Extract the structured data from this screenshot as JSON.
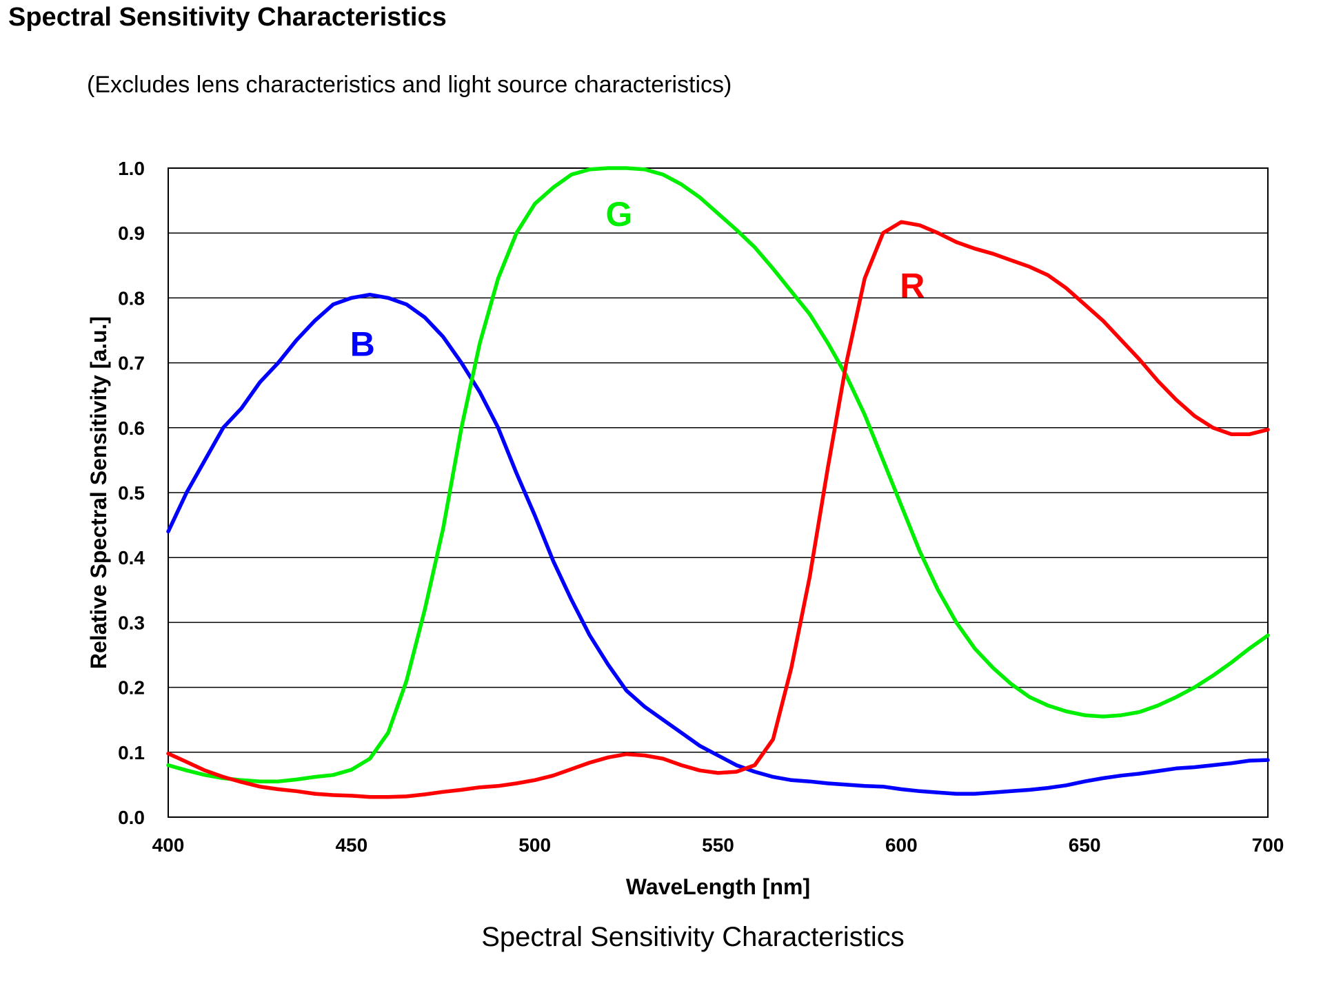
{
  "page": {
    "heading": "Spectral Sensitivity Characteristics",
    "subtitle": "(Excludes lens characteristics and light source characteristics)",
    "caption": "Spectral Sensitivity Characteristics"
  },
  "chart_data": {
    "type": "line",
    "xlabel": "WaveLength [nm]",
    "ylabel": "Relative Spectral Sensitivity [a.u.]",
    "xlim": [
      400,
      700
    ],
    "ylim": [
      0,
      1
    ],
    "xticks": [
      "400",
      "450",
      "500",
      "550",
      "600",
      "650",
      "700"
    ],
    "yticks": [
      "0.0",
      "0.1",
      "0.2",
      "0.3",
      "0.4",
      "0.5",
      "0.6",
      "0.7",
      "0.8",
      "0.9",
      "1.0"
    ],
    "grid": "horizontal",
    "series": [
      {
        "name": "B",
        "color": "#0000ff",
        "label_position": [
          453,
          0.73
        ],
        "points": [
          [
            400,
            0.44
          ],
          [
            405,
            0.5
          ],
          [
            410,
            0.55
          ],
          [
            415,
            0.6
          ],
          [
            420,
            0.63
          ],
          [
            425,
            0.67
          ],
          [
            430,
            0.7
          ],
          [
            435,
            0.735
          ],
          [
            440,
            0.765
          ],
          [
            445,
            0.79
          ],
          [
            450,
            0.8
          ],
          [
            455,
            0.805
          ],
          [
            460,
            0.8
          ],
          [
            465,
            0.79
          ],
          [
            470,
            0.77
          ],
          [
            475,
            0.74
          ],
          [
            480,
            0.7
          ],
          [
            485,
            0.655
          ],
          [
            490,
            0.6
          ],
          [
            495,
            0.53
          ],
          [
            500,
            0.465
          ],
          [
            505,
            0.395
          ],
          [
            510,
            0.335
          ],
          [
            515,
            0.28
          ],
          [
            520,
            0.235
          ],
          [
            525,
            0.195
          ],
          [
            530,
            0.17
          ],
          [
            535,
            0.15
          ],
          [
            540,
            0.13
          ],
          [
            545,
            0.11
          ],
          [
            550,
            0.095
          ],
          [
            555,
            0.08
          ],
          [
            560,
            0.07
          ],
          [
            565,
            0.062
          ],
          [
            570,
            0.057
          ],
          [
            575,
            0.055
          ],
          [
            580,
            0.052
          ],
          [
            585,
            0.05
          ],
          [
            590,
            0.048
          ],
          [
            595,
            0.047
          ],
          [
            600,
            0.043
          ],
          [
            605,
            0.04
          ],
          [
            610,
            0.038
          ],
          [
            615,
            0.036
          ],
          [
            620,
            0.036
          ],
          [
            625,
            0.038
          ],
          [
            630,
            0.04
          ],
          [
            635,
            0.042
          ],
          [
            640,
            0.045
          ],
          [
            645,
            0.049
          ],
          [
            650,
            0.055
          ],
          [
            655,
            0.06
          ],
          [
            660,
            0.064
          ],
          [
            665,
            0.067
          ],
          [
            670,
            0.071
          ],
          [
            675,
            0.075
          ],
          [
            680,
            0.077
          ],
          [
            685,
            0.08
          ],
          [
            690,
            0.083
          ],
          [
            695,
            0.087
          ],
          [
            700,
            0.088
          ]
        ]
      },
      {
        "name": "G",
        "color": "#00ee00",
        "label_position": [
          523,
          0.93
        ],
        "points": [
          [
            400,
            0.08
          ],
          [
            405,
            0.072
          ],
          [
            410,
            0.065
          ],
          [
            415,
            0.06
          ],
          [
            420,
            0.057
          ],
          [
            425,
            0.055
          ],
          [
            430,
            0.055
          ],
          [
            435,
            0.058
          ],
          [
            440,
            0.062
          ],
          [
            445,
            0.065
          ],
          [
            450,
            0.073
          ],
          [
            455,
            0.09
          ],
          [
            460,
            0.13
          ],
          [
            465,
            0.21
          ],
          [
            470,
            0.32
          ],
          [
            475,
            0.445
          ],
          [
            480,
            0.6
          ],
          [
            485,
            0.73
          ],
          [
            490,
            0.83
          ],
          [
            495,
            0.9
          ],
          [
            500,
            0.945
          ],
          [
            505,
            0.97
          ],
          [
            510,
            0.99
          ],
          [
            515,
            0.998
          ],
          [
            520,
            1.0
          ],
          [
            525,
            1.0
          ],
          [
            530,
            0.998
          ],
          [
            535,
            0.99
          ],
          [
            540,
            0.975
          ],
          [
            545,
            0.955
          ],
          [
            550,
            0.93
          ],
          [
            555,
            0.905
          ],
          [
            560,
            0.878
          ],
          [
            565,
            0.845
          ],
          [
            570,
            0.81
          ],
          [
            575,
            0.775
          ],
          [
            580,
            0.73
          ],
          [
            585,
            0.68
          ],
          [
            590,
            0.62
          ],
          [
            595,
            0.55
          ],
          [
            600,
            0.48
          ],
          [
            605,
            0.41
          ],
          [
            610,
            0.35
          ],
          [
            615,
            0.3
          ],
          [
            620,
            0.26
          ],
          [
            625,
            0.23
          ],
          [
            630,
            0.205
          ],
          [
            635,
            0.185
          ],
          [
            640,
            0.172
          ],
          [
            645,
            0.163
          ],
          [
            650,
            0.157
          ],
          [
            655,
            0.155
          ],
          [
            660,
            0.157
          ],
          [
            665,
            0.162
          ],
          [
            670,
            0.172
          ],
          [
            675,
            0.185
          ],
          [
            680,
            0.2
          ],
          [
            685,
            0.218
          ],
          [
            690,
            0.238
          ],
          [
            695,
            0.26
          ],
          [
            700,
            0.28
          ]
        ]
      },
      {
        "name": "R",
        "color": "#ff0000",
        "label_position": [
          603,
          0.82
        ],
        "points": [
          [
            400,
            0.098
          ],
          [
            405,
            0.085
          ],
          [
            410,
            0.072
          ],
          [
            415,
            0.062
          ],
          [
            420,
            0.054
          ],
          [
            425,
            0.047
          ],
          [
            430,
            0.043
          ],
          [
            435,
            0.04
          ],
          [
            440,
            0.036
          ],
          [
            445,
            0.034
          ],
          [
            450,
            0.033
          ],
          [
            455,
            0.031
          ],
          [
            460,
            0.031
          ],
          [
            465,
            0.032
          ],
          [
            470,
            0.035
          ],
          [
            475,
            0.039
          ],
          [
            480,
            0.042
          ],
          [
            485,
            0.046
          ],
          [
            490,
            0.048
          ],
          [
            495,
            0.052
          ],
          [
            500,
            0.057
          ],
          [
            505,
            0.064
          ],
          [
            510,
            0.074
          ],
          [
            515,
            0.084
          ],
          [
            520,
            0.092
          ],
          [
            525,
            0.097
          ],
          [
            530,
            0.095
          ],
          [
            535,
            0.09
          ],
          [
            540,
            0.08
          ],
          [
            545,
            0.072
          ],
          [
            550,
            0.068
          ],
          [
            555,
            0.07
          ],
          [
            560,
            0.08
          ],
          [
            565,
            0.12
          ],
          [
            570,
            0.23
          ],
          [
            575,
            0.37
          ],
          [
            580,
            0.54
          ],
          [
            585,
            0.7
          ],
          [
            590,
            0.83
          ],
          [
            595,
            0.9
          ],
          [
            600,
            0.917
          ],
          [
            605,
            0.912
          ],
          [
            610,
            0.9
          ],
          [
            615,
            0.886
          ],
          [
            620,
            0.876
          ],
          [
            625,
            0.868
          ],
          [
            630,
            0.858
          ],
          [
            635,
            0.848
          ],
          [
            640,
            0.835
          ],
          [
            645,
            0.815
          ],
          [
            650,
            0.79
          ],
          [
            655,
            0.765
          ],
          [
            660,
            0.735
          ],
          [
            665,
            0.705
          ],
          [
            670,
            0.672
          ],
          [
            675,
            0.643
          ],
          [
            680,
            0.618
          ],
          [
            685,
            0.6
          ],
          [
            690,
            0.59
          ],
          [
            695,
            0.59
          ],
          [
            700,
            0.597
          ]
        ]
      }
    ]
  }
}
